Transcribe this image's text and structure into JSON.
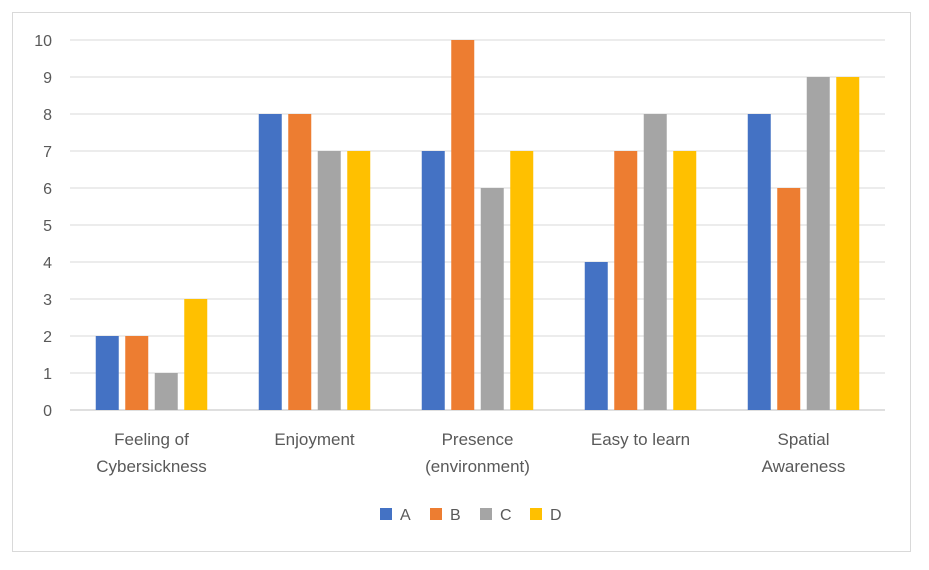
{
  "chart_data": {
    "type": "bar",
    "title": "",
    "xlabel": "",
    "ylabel": "",
    "categories": [
      [
        "Feeling of",
        "Cybersickness"
      ],
      [
        "Enjoyment"
      ],
      [
        "Presence",
        "(environment)"
      ],
      [
        "Easy to learn"
      ],
      [
        "Spatial",
        "Awareness"
      ]
    ],
    "series": [
      {
        "name": "A",
        "color": "#4472c4",
        "values": [
          2,
          8,
          7,
          4,
          8
        ]
      },
      {
        "name": "B",
        "color": "#ed7d31",
        "values": [
          2,
          8,
          10,
          7,
          6
        ]
      },
      {
        "name": "C",
        "color": "#a5a5a5",
        "values": [
          1,
          7,
          6,
          8,
          9
        ]
      },
      {
        "name": "D",
        "color": "#ffc000",
        "values": [
          3,
          7,
          7,
          7,
          9
        ]
      }
    ],
    "ylim": [
      0,
      10
    ],
    "yticks": [
      0,
      1,
      2,
      3,
      4,
      5,
      6,
      7,
      8,
      9,
      10
    ],
    "grid": true,
    "legend": "bottom-center"
  }
}
